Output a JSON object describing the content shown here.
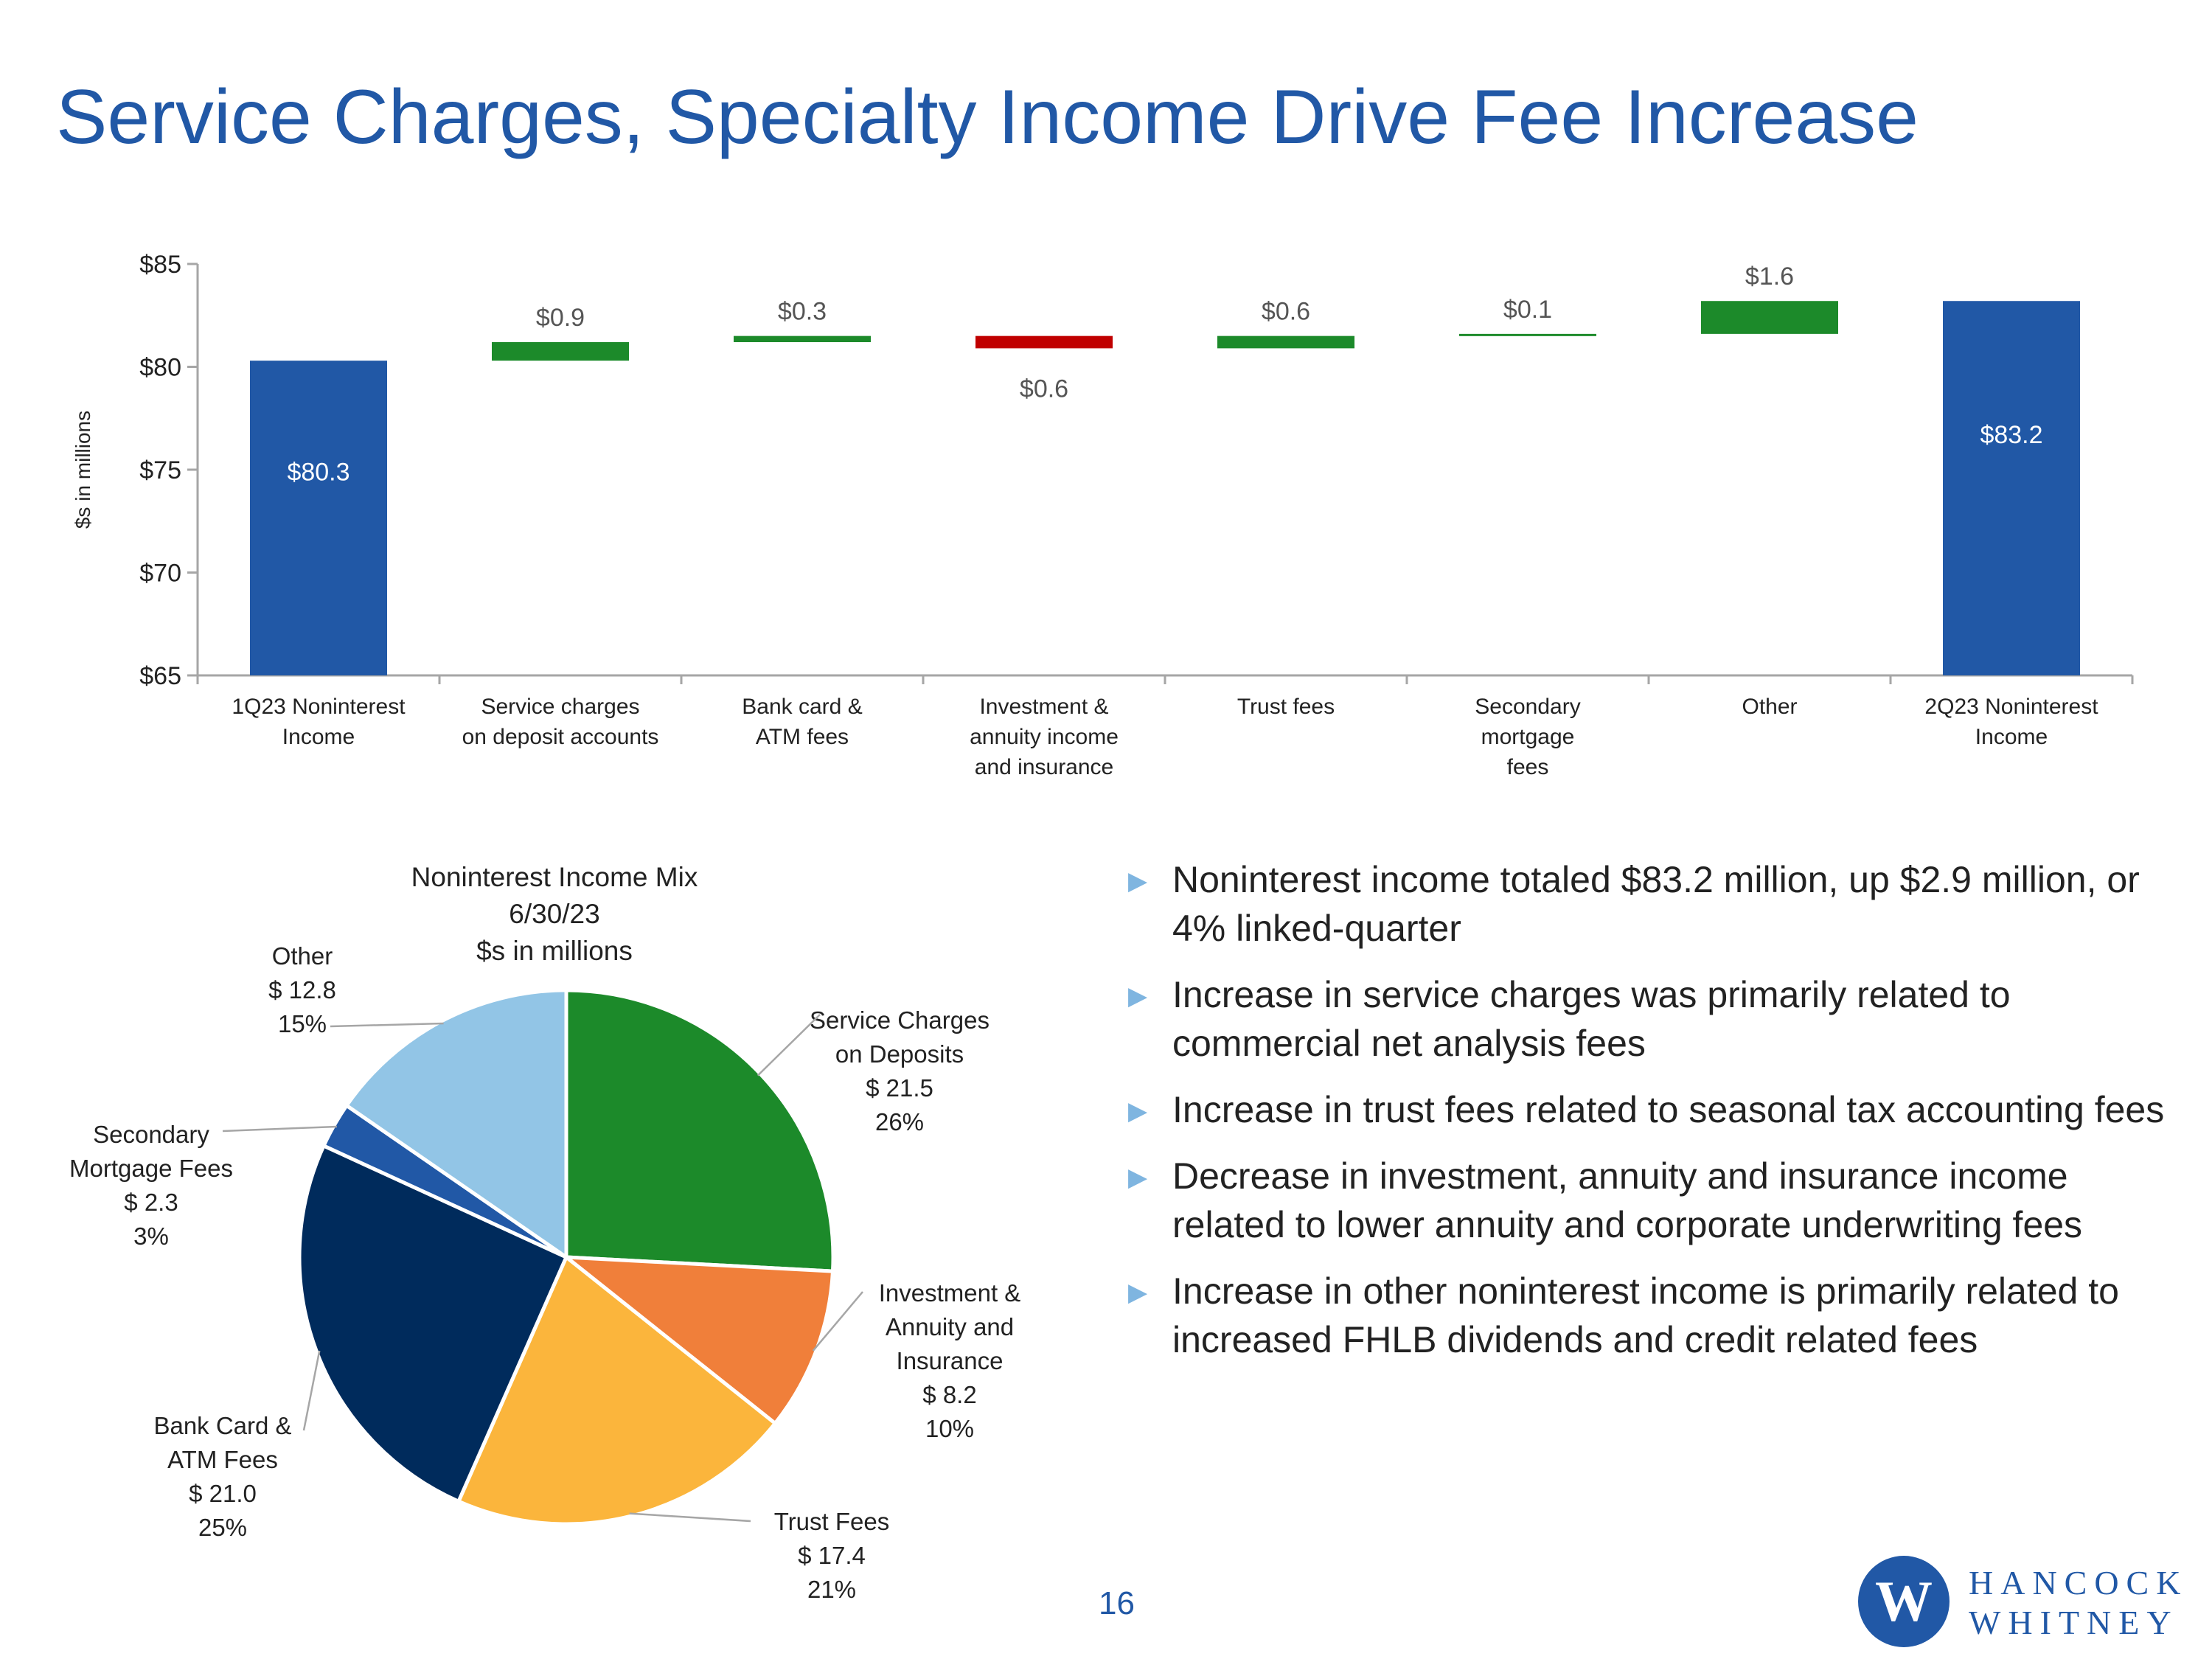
{
  "title": "Service Charges, Specialty Income Drive Fee Increase",
  "page_number": "16",
  "logo": {
    "line1": "HANCOCK",
    "line2": "WHITNEY",
    "mark": "W"
  },
  "colors": {
    "brand_blue": "#2158A6",
    "increase": "#1C8A2A",
    "decrease": "#C00000",
    "axis": "#A6A6A6"
  },
  "bullets": [
    "Noninterest income totaled $83.2 million, up $2.9 million, or 4% linked-quarter",
    "Increase in service charges was primarily related to commercial net analysis fees",
    "Increase in trust fees related to seasonal tax accounting fees",
    "Decrease in investment, annuity and insurance income related to lower annuity and corporate underwriting fees",
    "Increase in other noninterest income is primarily related to increased FHLB dividends and credit related fees"
  ],
  "chart_data": [
    {
      "type": "waterfall",
      "ylabel": "$s in millions",
      "ylim": [
        65,
        85
      ],
      "yticks": [
        65,
        70,
        75,
        80,
        85
      ],
      "ytick_labels": [
        "$65",
        "$70",
        "$75",
        "$80",
        "$85"
      ],
      "steps": [
        {
          "label": [
            "1Q23 Noninterest",
            "Income"
          ],
          "kind": "total",
          "value": 80.3,
          "display": "$80.3"
        },
        {
          "label": [
            "Service charges",
            "on deposit accounts"
          ],
          "kind": "increase",
          "value": 0.9,
          "display": "$0.9"
        },
        {
          "label": [
            "Bank card &",
            "ATM fees"
          ],
          "kind": "increase",
          "value": 0.3,
          "display": "$0.3"
        },
        {
          "label": [
            "Investment &",
            "annuity income",
            "and insurance"
          ],
          "kind": "decrease",
          "value": -0.6,
          "display": "$0.6"
        },
        {
          "label": [
            "Trust fees"
          ],
          "kind": "increase",
          "value": 0.6,
          "display": "$0.6"
        },
        {
          "label": [
            "Secondary",
            "mortgage",
            "fees"
          ],
          "kind": "increase",
          "value": 0.1,
          "display": "$0.1"
        },
        {
          "label": [
            "Other"
          ],
          "kind": "increase",
          "value": 1.6,
          "display": "$1.6"
        },
        {
          "label": [
            "2Q23 Noninterest",
            "Income"
          ],
          "kind": "total",
          "value": 83.2,
          "display": "$83.2"
        }
      ]
    },
    {
      "type": "pie",
      "title": [
        "Noninterest Income Mix",
        "6/30/23",
        "$s in millions"
      ],
      "slices": [
        {
          "name": "Service Charges on Deposits",
          "label_lines": [
            "Service Charges",
            "on Deposits",
            "$ 21.5",
            "26%"
          ],
          "value": 21.5,
          "percent": 26,
          "color": "#1C8A2A"
        },
        {
          "name": "Investment & Annuity and Insurance",
          "label_lines": [
            "Investment &",
            "Annuity and",
            "Insurance",
            "$ 8.2",
            "10%"
          ],
          "value": 8.2,
          "percent": 10,
          "color": "#F07F3A"
        },
        {
          "name": "Trust Fees",
          "label_lines": [
            "Trust Fees",
            "$ 17.4",
            "21%"
          ],
          "value": 17.4,
          "percent": 21,
          "color": "#FBB53C"
        },
        {
          "name": "Bank Card & ATM Fees",
          "label_lines": [
            "Bank Card &",
            "ATM Fees",
            "$ 21.0",
            "25%"
          ],
          "value": 21.0,
          "percent": 25,
          "color": "#002B5C"
        },
        {
          "name": "Secondary Mortgage Fees",
          "label_lines": [
            "Secondary",
            "Mortgage Fees",
            "$ 2.3",
            "3%"
          ],
          "value": 2.3,
          "percent": 3,
          "color": "#2158A6"
        },
        {
          "name": "Other",
          "label_lines": [
            "Other",
            "$ 12.8",
            "15%"
          ],
          "value": 12.8,
          "percent": 15,
          "color": "#92C5E6"
        }
      ]
    }
  ]
}
